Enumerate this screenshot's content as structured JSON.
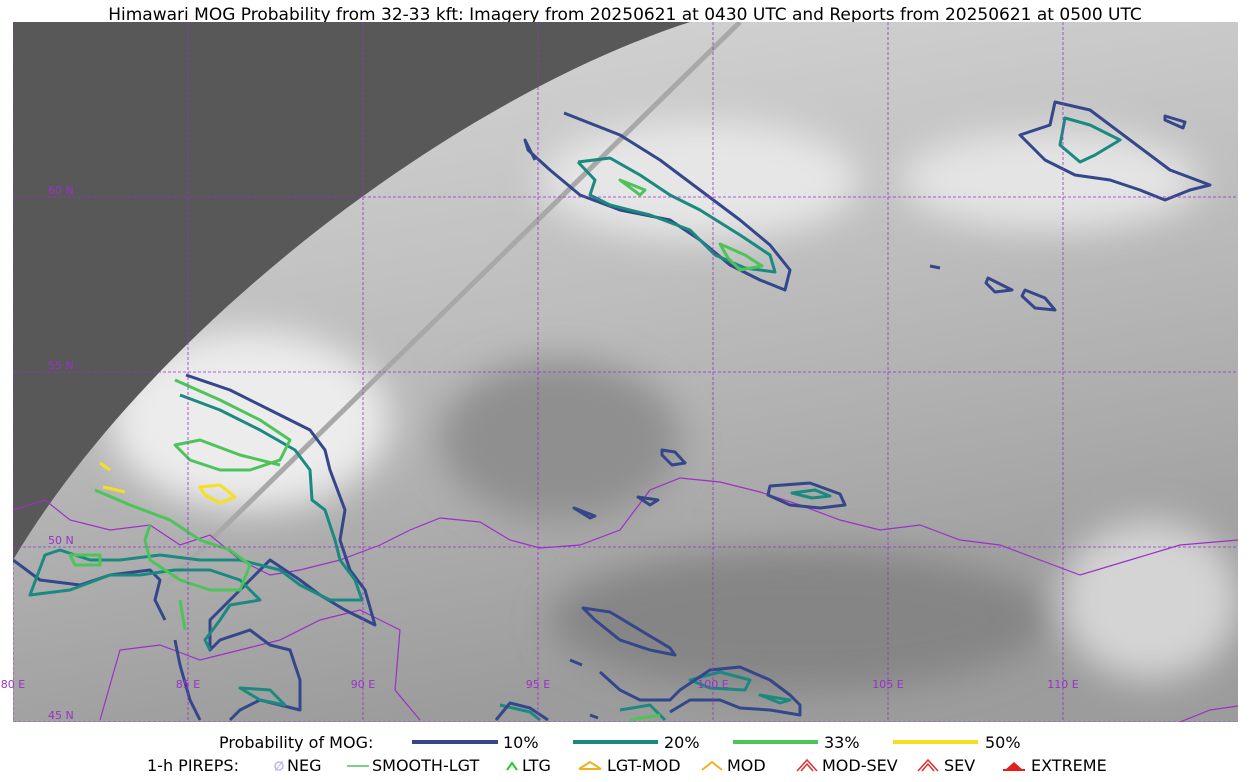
{
  "header": {
    "title": "Himawari MOG Probability from 32-33 kft: Imagery from 20250621 at 0430 UTC and Reports from 20250621 at 0500 UTC"
  },
  "map": {
    "latitude_labels": [
      "60 N",
      "55 N",
      "50 N",
      "45 N"
    ],
    "longitude_labels": [
      "80 E",
      "85 E",
      "90 E",
      "95 E",
      "100 E",
      "105 E",
      "110 E"
    ]
  },
  "legend": {
    "probability": {
      "title": "Probability of MOG:",
      "items": [
        "10%",
        "20%",
        "33%",
        "50%"
      ]
    },
    "pireps": {
      "title": "1-h PIREPS:",
      "items": [
        "NEG",
        "SMOOTH-LGT",
        "LTG",
        "LGT-MOD",
        "MOD",
        "MOD-SEV",
        "SEV",
        "EXTREME"
      ]
    }
  }
}
